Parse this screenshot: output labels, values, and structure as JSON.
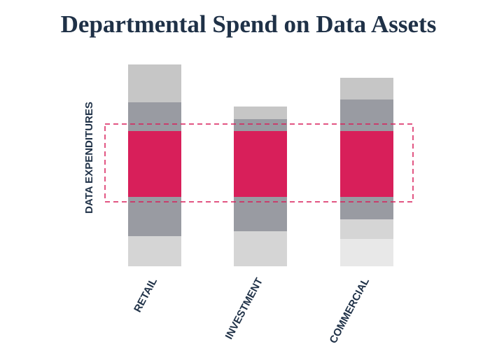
{
  "chart_data": {
    "type": "stacked-bar",
    "title": "Departmental Spend on Data Assets",
    "y_label": "DATA EXPENDITURES",
    "categories": [
      "RETAIL",
      "INVESTMENT",
      "COMMERCIAL"
    ],
    "series": [
      {
        "color": "#e8e8e8",
        "values": [
          null,
          null,
          39
        ]
      },
      {
        "color": "#d5d5d5",
        "values": [
          43,
          50,
          28
        ]
      },
      {
        "color": "#999ba2",
        "values": [
          56,
          49,
          32
        ]
      },
      {
        "color": "#d81f5a",
        "values": [
          94,
          94,
          94
        ]
      },
      {
        "color": "#999ba2",
        "values": [
          41,
          17,
          45
        ]
      },
      {
        "color": "#c6c6c6",
        "values": [
          54,
          18,
          31
        ]
      }
    ],
    "ylim": [
      0,
      300
    ]
  }
}
